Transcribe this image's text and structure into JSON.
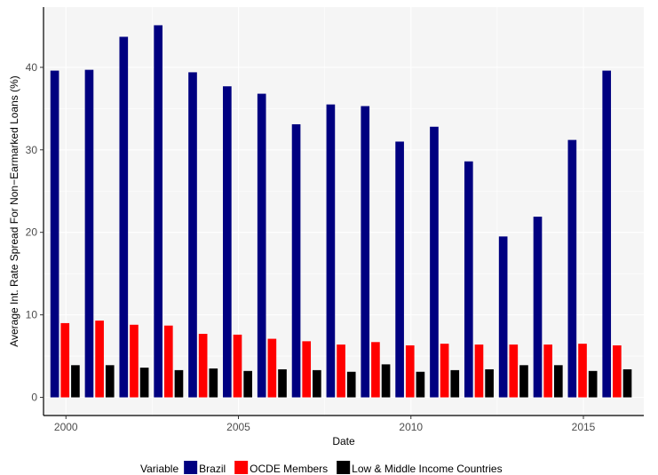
{
  "chart_data": {
    "type": "bar",
    "xlabel": "Date",
    "ylabel": "Average Int. Rate Spread For Non−Earmarked Loans (%)",
    "x": [
      2000,
      2001,
      2002,
      2003,
      2004,
      2005,
      2006,
      2007,
      2008,
      2009,
      2010,
      2011,
      2012,
      2013,
      2014,
      2015,
      2016
    ],
    "x_ticks": [
      2000,
      2005,
      2010,
      2015
    ],
    "y_ticks": [
      0,
      10,
      20,
      30,
      40
    ],
    "ylim": [
      -2.2,
      47.3
    ],
    "xlim": [
      1999.35,
      2016.75
    ],
    "grid": true,
    "legend_position": "bottom",
    "legend_title": "Variable",
    "series": [
      {
        "name": "Brazil",
        "color": "#000080",
        "values": [
          39.6,
          39.7,
          43.7,
          45.1,
          39.4,
          37.7,
          36.8,
          33.1,
          35.5,
          35.3,
          31.0,
          32.8,
          28.6,
          19.5,
          21.9,
          31.2,
          39.6
        ]
      },
      {
        "name": "OCDE Members",
        "color": "#ff0000",
        "values": [
          9.0,
          9.3,
          8.8,
          8.7,
          7.7,
          7.6,
          7.1,
          6.8,
          6.4,
          6.7,
          6.3,
          6.5,
          6.4,
          6.4,
          6.4,
          6.5,
          6.3
        ]
      },
      {
        "name": "Low & Middle Income Countries",
        "color": "#000000",
        "values": [
          3.9,
          3.9,
          3.6,
          3.3,
          3.5,
          3.2,
          3.4,
          3.3,
          3.1,
          4.0,
          3.1,
          3.3,
          3.4,
          3.9,
          3.9,
          3.2,
          3.4
        ]
      }
    ]
  }
}
